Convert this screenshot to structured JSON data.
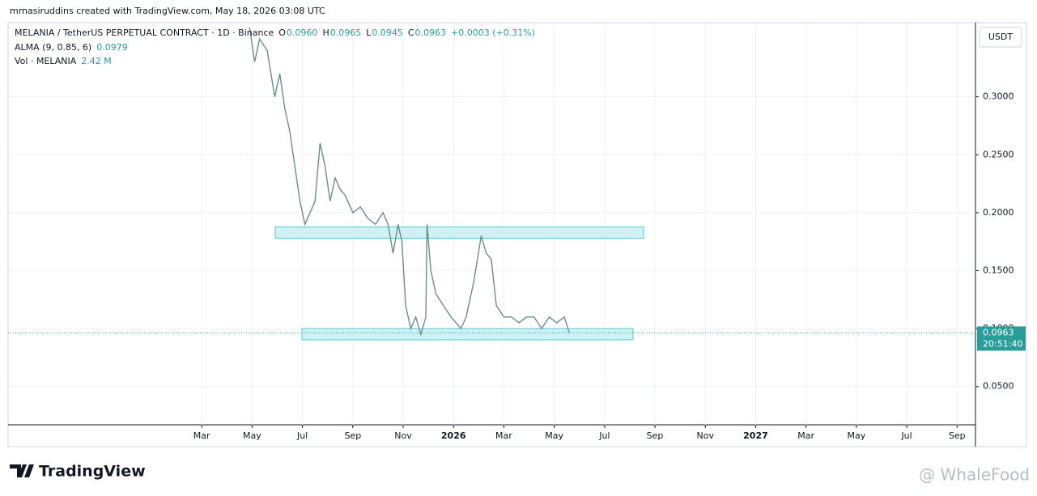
{
  "chart_data": {
    "type": "line",
    "header": "mrnasiruddins created with TradingView.com, May 18, 2026 03:08 UTC",
    "legend": {
      "symbol": "MELANIA / TetherUS PERPETUAL CONTRACT · 1D · Binance",
      "o_label": "O",
      "o": "0.0960",
      "h_label": "H",
      "h": "0.0965",
      "l_label": "L",
      "l": "0.0945",
      "c_label": "C",
      "c": "0.0963",
      "change": "+0.0003 (+0.31%)",
      "alma": "ALMA (9, 0.85, 6)",
      "alma_value": "0.0979",
      "vol": "Vol · MELANIA",
      "vol_value": "2.42 M"
    },
    "currency": "USDT",
    "x": [
      3.9,
      4.1,
      4.3,
      4.6,
      4.9,
      5.1,
      5.3,
      5.5,
      5.7,
      5.9,
      6.1,
      6.3,
      6.5,
      6.7,
      6.9,
      7.1,
      7.3,
      7.5,
      7.7,
      8.0,
      8.3,
      8.6,
      8.9,
      9.2,
      9.4,
      9.6,
      9.8,
      9.95,
      10.1,
      10.3,
      10.5,
      10.7,
      10.9,
      10.95,
      11.1,
      11.3,
      11.6,
      11.9,
      12.1,
      12.3,
      12.5,
      12.8,
      13.1,
      13.3,
      13.5,
      13.7,
      14.0,
      14.3,
      14.6,
      14.9,
      15.2,
      15.5,
      15.8,
      16.1,
      16.4,
      16.6
    ],
    "series": [
      {
        "color": "#6a8f86",
        "values": [
          0.36,
          0.33,
          0.35,
          0.34,
          0.3,
          0.32,
          0.29,
          0.27,
          0.24,
          0.21,
          0.19,
          0.2,
          0.21,
          0.26,
          0.24,
          0.21,
          0.23,
          0.22,
          0.215,
          0.2,
          0.205,
          0.195,
          0.19,
          0.2,
          0.19,
          0.165,
          0.19,
          0.175,
          0.12,
          0.1,
          0.11,
          0.095,
          0.11,
          0.19,
          0.15,
          0.13,
          0.12,
          0.11,
          0.105,
          0.1,
          0.11,
          0.14,
          0.18,
          0.165,
          0.16,
          0.12,
          0.11,
          0.11,
          0.105,
          0.11,
          0.11,
          0.1,
          0.11,
          0.105,
          0.11,
          0.0963
        ]
      }
    ],
    "zones": [
      {
        "x": [
          4.92,
          19.55
        ],
        "y": [
          0.178,
          0.1878
        ]
      },
      {
        "x": [
          5.98,
          19.13
        ],
        "y": [
          0.0903,
          0.1
        ]
      }
    ],
    "zone_color": "#cdf1f5",
    "last_price": 0.0963,
    "countdown": "20:51:40",
    "xlim": [
      -5.69,
      32.73
    ],
    "ylim": [
      0.017,
      0.364
    ],
    "xticks": [
      {
        "value": 2,
        "label": "Mar"
      },
      {
        "value": 4,
        "label": "May"
      },
      {
        "value": 6,
        "label": "Jul"
      },
      {
        "value": 8,
        "label": "Sep"
      },
      {
        "value": 10,
        "label": "Nov"
      },
      {
        "value": 12,
        "label": "2026"
      },
      {
        "value": 14,
        "label": "Mar"
      },
      {
        "value": 16,
        "label": "May"
      },
      {
        "value": 18,
        "label": "Jul"
      },
      {
        "value": 20,
        "label": "Sep"
      },
      {
        "value": 22,
        "label": "Nov"
      },
      {
        "value": 24,
        "label": "2027"
      },
      {
        "value": 26,
        "label": "Mar"
      },
      {
        "value": 28,
        "label": "May"
      },
      {
        "value": 30,
        "label": "Jul"
      },
      {
        "value": 32,
        "label": "Sep"
      }
    ],
    "yticks": [
      {
        "value": 0.05,
        "label": "0.0500"
      },
      {
        "value": 0.1,
        "label": "0.1000"
      },
      {
        "value": 0.15,
        "label": "0.1500"
      },
      {
        "value": 0.2,
        "label": "0.2000"
      },
      {
        "value": 0.25,
        "label": "0.2500"
      },
      {
        "value": 0.3,
        "label": "0.3000"
      }
    ],
    "grid": true,
    "brand": "TradingView",
    "watermark": "@ WhaleFood"
  }
}
